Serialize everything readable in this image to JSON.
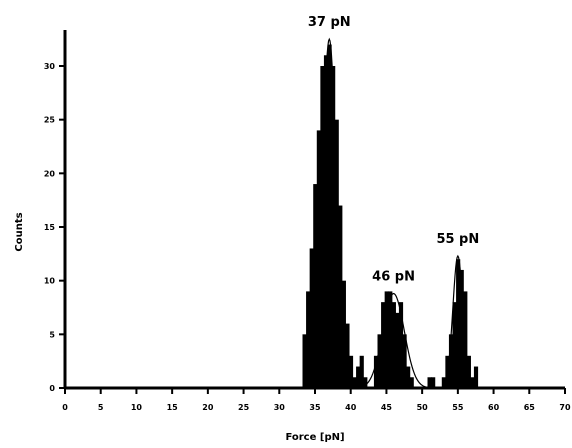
{
  "chart_data": {
    "type": "bar",
    "title": "",
    "xlabel": "Force [pN]",
    "ylabel": "Counts",
    "xlim": [
      0,
      70
    ],
    "ylim": [
      0,
      33
    ],
    "x_ticks": [
      0,
      5,
      10,
      15,
      20,
      25,
      30,
      35,
      40,
      45,
      50,
      55,
      60,
      65,
      70
    ],
    "y_ticks": [
      0,
      5,
      10,
      15,
      20,
      25,
      30
    ],
    "grid": false,
    "bin_width": 0.5,
    "histogram": {
      "x": [
        33.5,
        34.0,
        34.5,
        35.0,
        35.5,
        36.0,
        36.5,
        37.0,
        37.5,
        38.0,
        38.5,
        39.0,
        39.5,
        40.0,
        40.5,
        41.0,
        41.5,
        42.0,
        42.5,
        43.0,
        43.5,
        44.0,
        44.5,
        45.0,
        45.5,
        46.0,
        46.5,
        47.0,
        47.5,
        48.0,
        48.5,
        49.0,
        49.5,
        50.0,
        50.5,
        51.0,
        51.5,
        52.0,
        52.5,
        53.0,
        53.5,
        54.0,
        54.5,
        55.0,
        55.5,
        56.0,
        56.5,
        57.0,
        57.5
      ],
      "values": [
        5,
        9,
        13,
        19,
        24,
        30,
        31,
        32,
        30,
        25,
        17,
        10,
        6,
        3,
        1,
        2,
        3,
        1,
        0,
        0,
        3,
        5,
        8,
        9,
        9,
        8,
        7,
        8,
        5,
        2,
        1,
        0,
        0,
        0,
        0,
        1,
        1,
        0,
        0,
        1,
        3,
        5,
        8,
        12,
        11,
        9,
        3,
        1,
        2
      ]
    },
    "fit_peaks": [
      {
        "label": "37 pN",
        "center": 37,
        "amplitude": 32.5,
        "sigma": 1.0
      },
      {
        "label": "46 pN",
        "center": 46,
        "amplitude": 8.8,
        "sigma": 1.5
      },
      {
        "label": "55 pN",
        "center": 55,
        "amplitude": 12.3,
        "sigma": 0.7
      }
    ]
  }
}
